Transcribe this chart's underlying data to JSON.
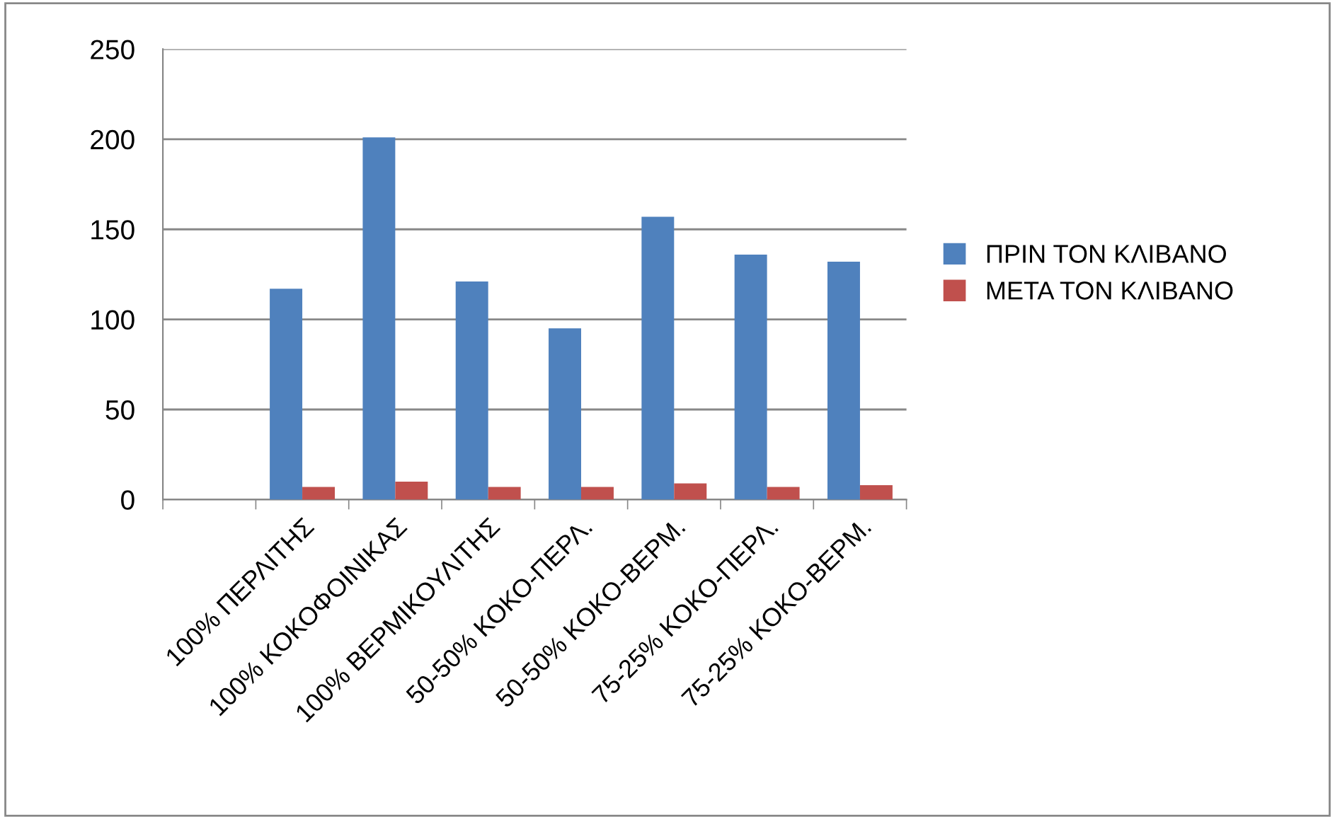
{
  "chart_data": {
    "type": "bar",
    "categories": [
      null,
      "100% ΠΕΡΛΙΤΗΣ",
      "100% ΚΟΚΟΦΟΙΝΙΚΑΣ",
      "100% ΒΕΡΜΙΚΟΥΛΙΤΗΣ",
      "50-50% ΚΟΚΟ-ΠΕΡΛ.",
      "50-50% ΚΟΚΟ-ΒΕΡΜ.",
      "75-25% ΚΟΚΟ-ΠΕΡΛ.",
      "75-25% ΚΟΚΟ-ΒΕΡΜ."
    ],
    "series": [
      {
        "name": "ΠΡΙΝ ΤΟΝ ΚΛΙΒΑΝΟ",
        "color": "#4f81bd",
        "values": [
          null,
          117,
          201,
          121,
          95,
          157,
          136,
          132
        ]
      },
      {
        "name": "ΜΕΤΑ ΤΟΝ ΚΛΙΒΑΝΟ",
        "color": "#c0504d",
        "values": [
          null,
          7,
          10,
          7,
          7,
          9,
          7,
          8
        ]
      }
    ],
    "ylim": [
      0,
      250
    ],
    "yticks": [
      0,
      50,
      100,
      150,
      200,
      250
    ],
    "grid": "y",
    "legend": "right"
  }
}
